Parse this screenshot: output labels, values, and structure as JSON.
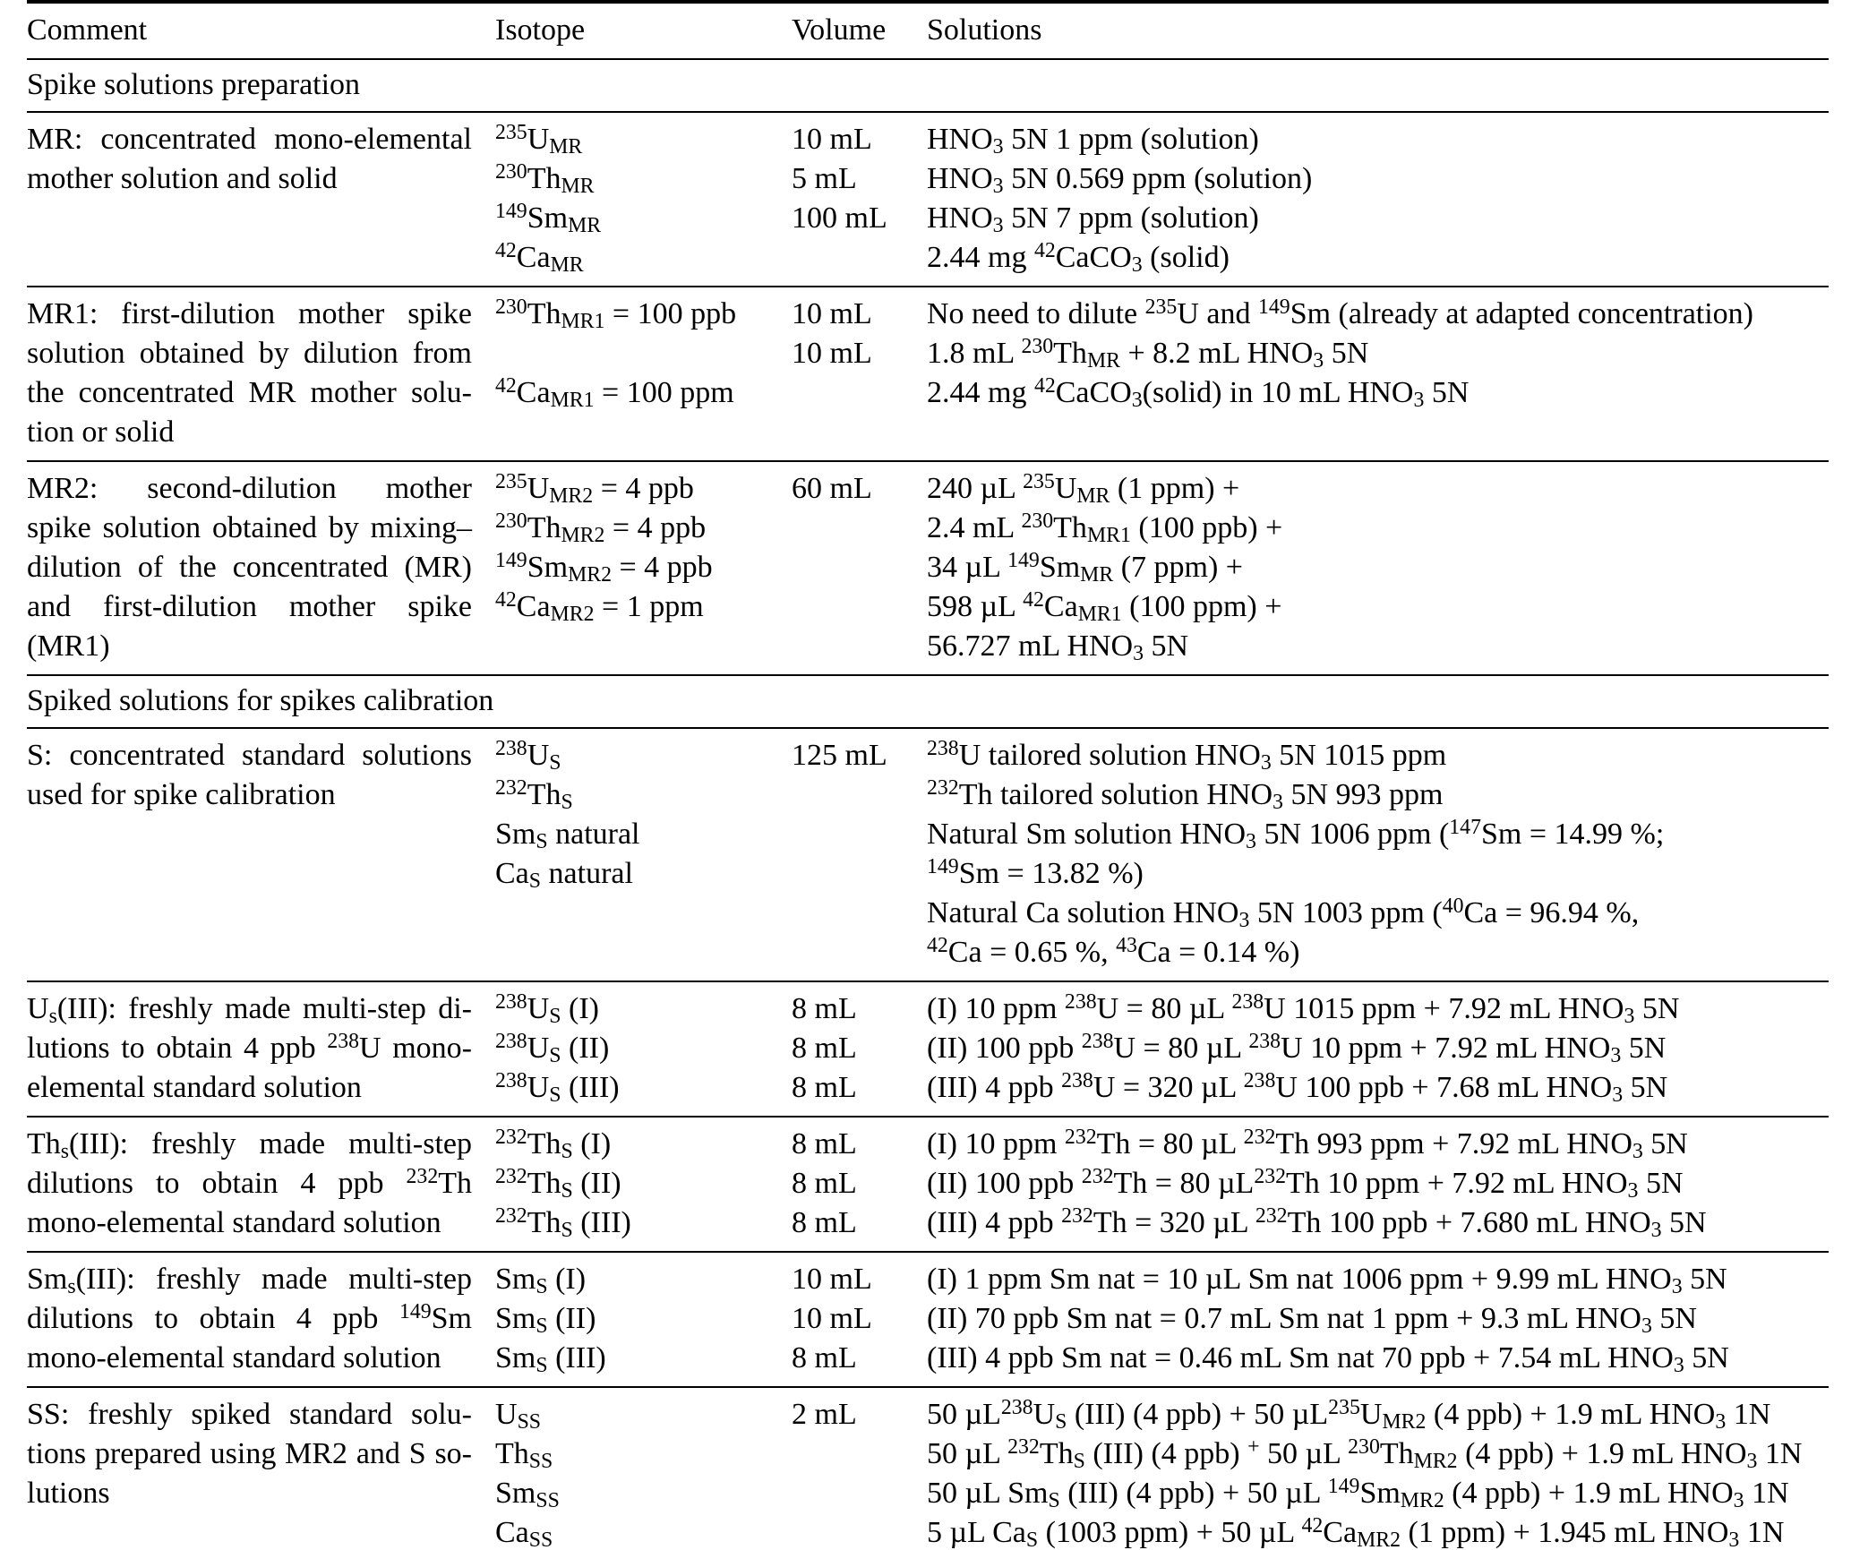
{
  "table": {
    "headers": [
      "Comment",
      "Isotope",
      "Volume",
      "Solutions"
    ],
    "sections": [
      {
        "title": "Spike solutions preparation",
        "rows": [
          {
            "comment": [
              "MR: concentrated mono-elemental",
              "mother solution and solid"
            ],
            "isotope": [
              "^{235}U_{MR}",
              "^{230}Th_{MR}",
              "^{149}Sm_{MR}",
              "^{42}Ca_{MR}"
            ],
            "volume": [
              "10 mL",
              "5 mL",
              "100 mL"
            ],
            "solutions": [
              "HNO_{3} 5N 1 ppm (solution)",
              "HNO_{3} 5N 0.569 ppm (solution)",
              "HNO_{3} 5N 7 ppm (solution)",
              "2.44 mg ^{42}CaCO_{3} (solid)"
            ]
          },
          {
            "comment": [
              "MR1: first-dilution mother spike",
              "solution obtained by dilution from",
              "the concentrated MR mother solu-",
              "tion or solid"
            ],
            "isotope": [
              "^{230}Th_{MR1} = 100 ppb",
              "",
              "^{42}Ca_{MR1} = 100 ppm"
            ],
            "volume": [
              "10 mL",
              "10 mL"
            ],
            "solutions": [
              "No need to dilute ^{235}U and ^{149}Sm (already at adapted concentration)",
              "1.8 mL ^{230}Th_{MR} + 8.2 mL HNO_{3} 5N",
              "2.44 mg ^{42}CaCO_{3}(solid) in 10 mL HNO_{3} 5N"
            ]
          },
          {
            "comment": [
              "MR2: second-dilution mother",
              "spike solution obtained by mixing–",
              "dilution of the concentrated (MR)",
              "and first-dilution mother spike",
              "(MR1)"
            ],
            "isotope": [
              "^{235}U_{MR2} = 4 ppb",
              "^{230}Th_{MR2} = 4 ppb",
              "^{149}Sm_{MR2} = 4 ppb",
              "^{42}Ca_{MR2} = 1 ppm"
            ],
            "volume": [
              "60 mL"
            ],
            "solutions": [
              "240 µL ^{235}U_{MR} (1 ppm) +",
              "2.4 mL ^{230}Th_{MR1} (100 ppb) +",
              "34 µL ^{149}Sm_{MR} (7 ppm) +",
              "598 µL ^{42}Ca_{MR1} (100 ppm) +",
              "56.727 mL HNO_{3} 5N"
            ]
          }
        ]
      },
      {
        "title": "Spiked solutions for spikes calibration",
        "rows": [
          {
            "comment": [
              "S: concentrated standard solutions",
              "used for spike calibration"
            ],
            "isotope": [
              "^{238}U_{S}",
              "^{232}Th_{S}",
              "Sm_{S} natural",
              "Ca_{S} natural"
            ],
            "volume": [
              "125 mL"
            ],
            "solutions": [
              "^{238}U tailored solution HNO_{3} 5N 1015 ppm",
              "^{232}Th tailored solution HNO_{3} 5N 993 ppm",
              "Natural Sm solution HNO_{3} 5N 1006 ppm (^{147}Sm = 14.99 %;",
              "^{149}Sm = 13.82 %)",
              "Natural Ca solution HNO_{3} 5N 1003 ppm (^{40}Ca = 96.94 %,",
              "^{42}Ca = 0.65 %, ^{43}Ca = 0.14 %)"
            ]
          },
          {
            "comment": [
              "U_{s}(III): freshly made multi-step di-",
              "lutions to obtain 4 ppb ^{238}U mono-",
              "elemental standard solution"
            ],
            "isotope": [
              "^{238}U_{S} (I)",
              "^{238}U_{S} (II)",
              "^{238}U_{S} (III)"
            ],
            "volume": [
              "8 mL",
              "8 mL",
              "8 mL"
            ],
            "solutions": [
              "(I) 10 ppm ^{238}U = 80 µL ^{238}U 1015 ppm + 7.92 mL HNO_{3} 5N",
              "(II) 100 ppb ^{238}U = 80 µL ^{238}U 10 ppm + 7.92 mL HNO_{3} 5N",
              "(III) 4 ppb ^{238}U = 320 µL ^{238}U 100 ppb + 7.68 mL HNO_{3} 5N"
            ]
          },
          {
            "comment": [
              "Th_{s}(III): freshly made multi-step",
              "dilutions to obtain 4 ppb ^{232}Th",
              "mono-elemental standard solution"
            ],
            "isotope": [
              "^{232}Th_{S} (I)",
              "^{232}Th_{S} (II)",
              "^{232}Th_{S} (III)"
            ],
            "volume": [
              "8 mL",
              "8 mL",
              "8 mL"
            ],
            "solutions": [
              "(I) 10 ppm ^{232}Th = 80 µL ^{232}Th 993 ppm + 7.92 mL HNO_{3} 5N",
              "(II) 100 ppb ^{232}Th = 80 µL^{232}Th 10 ppm + 7.92 mL HNO_{3} 5N",
              "(III) 4 ppb ^{232}Th = 320 µL ^{232}Th 100 ppb + 7.680 mL HNO_{3} 5N"
            ]
          },
          {
            "comment": [
              "Sm_{s}(III): freshly made multi-step",
              "dilutions to obtain 4 ppb ^{149}Sm",
              "mono-elemental standard solution"
            ],
            "isotope": [
              "Sm_{S} (I)",
              "Sm_{S} (II)",
              "Sm_{S} (III)"
            ],
            "volume": [
              "10 mL",
              "10 mL",
              "8 mL"
            ],
            "solutions": [
              "(I) 1 ppm Sm nat = 10 µL Sm nat 1006 ppm + 9.99 mL HNO_{3} 5N",
              "(II) 70 ppb Sm nat = 0.7 mL Sm nat 1 ppm + 9.3 mL HNO_{3} 5N",
              "(III) 4 ppb Sm nat = 0.46 mL Sm nat 70 ppb + 7.54 mL HNO_{3} 5N"
            ]
          },
          {
            "comment": [
              "SS: freshly spiked standard solu-",
              "tions prepared using MR2 and S so-",
              "lutions"
            ],
            "isotope": [
              "U_{SS}",
              "Th_{SS}",
              "Sm_{SS}",
              "Ca_{SS}"
            ],
            "volume": [
              "2 mL"
            ],
            "solutions": [
              "50 µL^{238}U_{S} (III) (4 ppb) + 50 µL^{235}U_{MR2} (4 ppb) + 1.9 mL HNO_{3} 1N",
              "50 µL ^{232}Th_{S} (III) (4 ppb) ^{+} 50 µL ^{230}Th_{MR2} (4 ppb) + 1.9 mL HNO_{3} 1N",
              "50 µL Sm_{S} (III) (4 ppb) + 50 µL ^{149}Sm_{MR2} (4 ppb) + 1.9 mL HNO_{3} 1N",
              "5 µL Ca_{S} (1003 ppm) + 50 µL ^{42}Ca_{MR2} (1 ppm) + 1.945 mL HNO_{3} 1N"
            ]
          }
        ]
      }
    ]
  }
}
